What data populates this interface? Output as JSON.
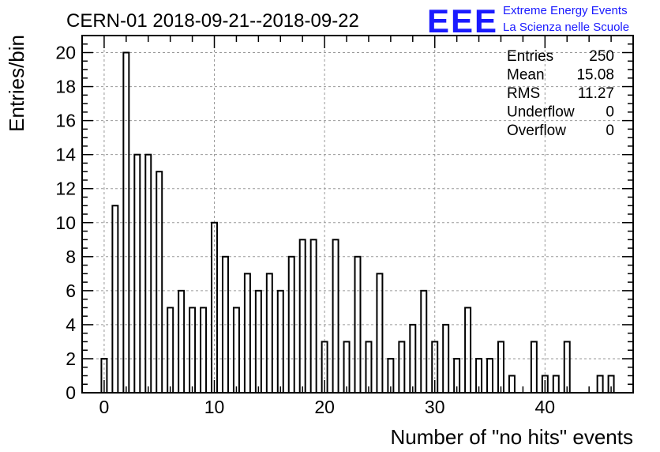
{
  "header": {
    "title": "CERN-01 2018-09-21--2018-09-22",
    "logo_text": "EEE",
    "logo_line1": "Extreme Energy Events",
    "logo_line2": "La Scienza nelle Scuole"
  },
  "colors": {
    "logo_blue": "#1a1aff",
    "grid": "#9a9a9a",
    "bar_stroke": "#000000"
  },
  "stats": [
    {
      "label": "Entries",
      "value": "250"
    },
    {
      "label": "Mean",
      "value": "15.08"
    },
    {
      "label": "RMS",
      "value": "11.27"
    },
    {
      "label": "Underflow",
      "value": "0"
    },
    {
      "label": "Overflow",
      "value": "0"
    }
  ],
  "chart_data": {
    "type": "bar",
    "title": "CERN-01 2018-09-21--2018-09-22",
    "xlabel": "Number of \"no hits\" events",
    "ylabel": "Entries/bin",
    "xlim": [
      -2,
      48
    ],
    "ylim": [
      0,
      21
    ],
    "grid": true,
    "xticks": [
      "0",
      "10",
      "20",
      "30",
      "40"
    ],
    "yticks": [
      "0",
      "2",
      "4",
      "6",
      "8",
      "10",
      "12",
      "14",
      "16",
      "18",
      "20"
    ],
    "categories": [
      0,
      1,
      2,
      3,
      4,
      5,
      6,
      7,
      8,
      9,
      10,
      11,
      12,
      13,
      14,
      15,
      16,
      17,
      18,
      19,
      20,
      21,
      22,
      23,
      24,
      25,
      26,
      27,
      28,
      29,
      30,
      31,
      32,
      33,
      34,
      35,
      36,
      37,
      38,
      39,
      40,
      41,
      42,
      43,
      44,
      45,
      46
    ],
    "values": [
      2,
      11,
      20,
      14,
      14,
      13,
      5,
      6,
      5,
      5,
      10,
      8,
      5,
      7,
      6,
      7,
      6,
      8,
      9,
      9,
      3,
      9,
      3,
      8,
      3,
      7,
      2,
      3,
      4,
      6,
      3,
      4,
      2,
      5,
      2,
      2,
      3,
      1,
      0,
      3,
      1,
      1,
      3,
      0,
      0,
      1,
      1
    ]
  }
}
